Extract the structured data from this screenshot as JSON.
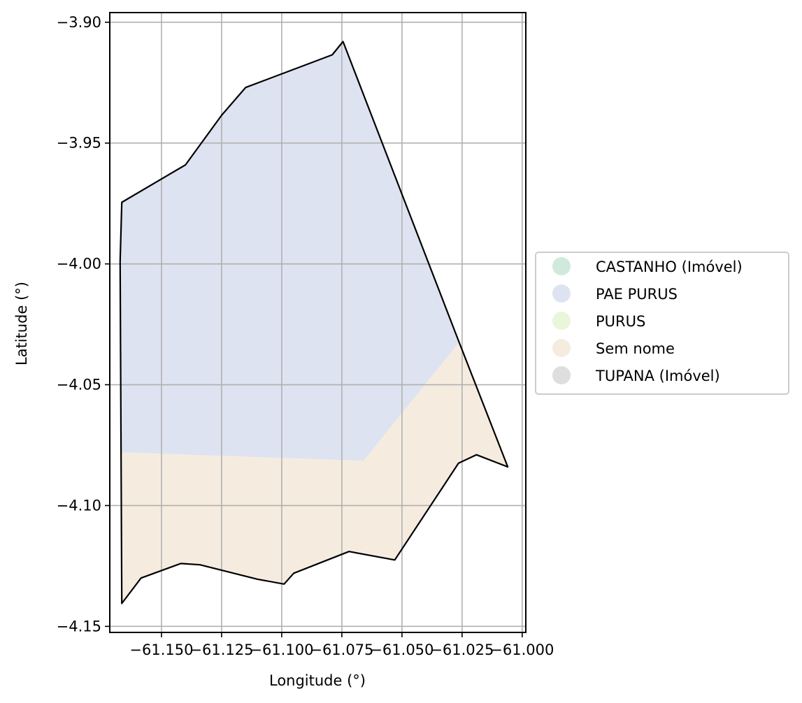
{
  "chart_data": {
    "type": "map",
    "xlabel": "Longitude (°)",
    "ylabel": "Latitude (°)",
    "xlim": [
      -61.1715,
      -60.9985
    ],
    "ylim": [
      -4.1525,
      -3.896
    ],
    "grid": true,
    "x_ticks": [
      -61.15,
      -61.125,
      -61.1,
      -61.075,
      -61.05,
      -61.025,
      -61.0
    ],
    "x_tick_labels": [
      "−61.150",
      "−61.125",
      "−61.100",
      "−61.075",
      "−61.050",
      "−61.025",
      "−61.000"
    ],
    "y_ticks": [
      -3.9,
      -3.95,
      -4.0,
      -4.05,
      -4.1,
      -4.15
    ],
    "y_tick_labels": [
      "−3.90",
      "−3.95",
      "−4.00",
      "−4.05",
      "−4.10",
      "−4.15"
    ],
    "legend_position": "right",
    "legend": [
      {
        "label": "CASTANHO (Imóvel)",
        "color": "#cfeadc"
      },
      {
        "label": "PAE PURUS",
        "color": "#dee3f1"
      },
      {
        "label": "PURUS",
        "color": "#eaf6d9"
      },
      {
        "label": "Sem nome",
        "color": "#f5ecdf"
      },
      {
        "label": "TUPANA (Imóvel)",
        "color": "#dedede"
      }
    ],
    "regions": [
      {
        "name": "PAE PURUS",
        "color": "#dee3f1",
        "coords": [
          [
            -61.1665,
            -3.9745
          ],
          [
            -61.14,
            -3.959
          ],
          [
            -61.125,
            -3.9385
          ],
          [
            -61.115,
            -3.927
          ],
          [
            -61.079,
            -3.9135
          ],
          [
            -61.0745,
            -3.908
          ],
          [
            -61.0262,
            -4.0325
          ],
          [
            -61.066,
            -4.0815
          ],
          [
            -61.1665,
            -4.078
          ],
          [
            -61.1672,
            -3.999
          ]
        ]
      },
      {
        "name": "Sem nome",
        "color": "#f5ecdf",
        "coords": [
          [
            -61.1665,
            -4.078
          ],
          [
            -61.066,
            -4.0815
          ],
          [
            -61.0262,
            -4.0325
          ],
          [
            -61.006,
            -4.084
          ],
          [
            -61.019,
            -4.079
          ],
          [
            -61.0265,
            -4.0825
          ],
          [
            -61.053,
            -4.1225
          ],
          [
            -61.072,
            -4.119
          ],
          [
            -61.095,
            -4.128
          ],
          [
            -61.099,
            -4.1325
          ],
          [
            -61.11,
            -4.1305
          ],
          [
            -61.134,
            -4.1245
          ],
          [
            -61.142,
            -4.124
          ],
          [
            -61.1585,
            -4.13
          ],
          [
            -61.1665,
            -4.1405
          ]
        ]
      }
    ],
    "outline": [
      [
        -61.1665,
        -3.9745
      ],
      [
        -61.14,
        -3.959
      ],
      [
        -61.125,
        -3.9385
      ],
      [
        -61.115,
        -3.927
      ],
      [
        -61.079,
        -3.9135
      ],
      [
        -61.0745,
        -3.908
      ],
      [
        -61.0262,
        -4.0325
      ],
      [
        -61.006,
        -4.084
      ],
      [
        -61.019,
        -4.079
      ],
      [
        -61.0265,
        -4.0825
      ],
      [
        -61.053,
        -4.1225
      ],
      [
        -61.072,
        -4.119
      ],
      [
        -61.095,
        -4.128
      ],
      [
        -61.099,
        -4.1325
      ],
      [
        -61.11,
        -4.1305
      ],
      [
        -61.134,
        -4.1245
      ],
      [
        -61.142,
        -4.124
      ],
      [
        -61.1585,
        -4.13
      ],
      [
        -61.1665,
        -4.1405
      ],
      [
        -61.1672,
        -3.999
      ]
    ]
  }
}
